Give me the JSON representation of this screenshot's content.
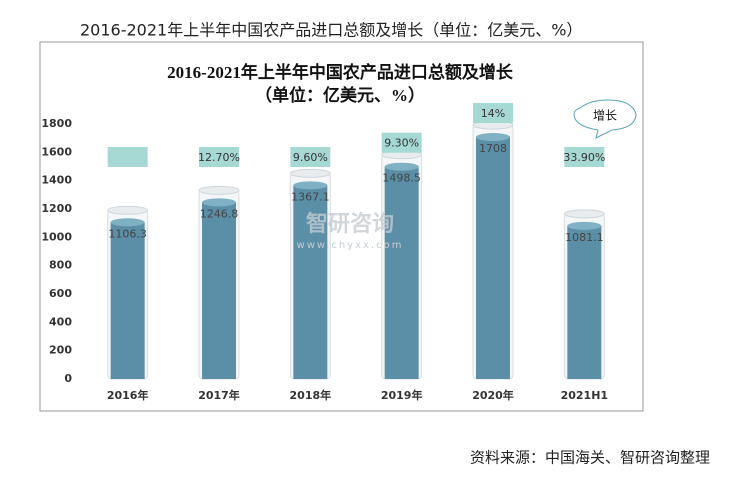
{
  "caption": "2016-2021年上半年中国农产品进口总额及增长（单位：亿美元、%）",
  "source": "资料来源：中国海关、智研咨询整理",
  "chart_data": {
    "type": "bar",
    "title": "2016-2021年上半年中国农产品进口总额及增长",
    "subtitle": "（单位：亿美元、%）",
    "categories": [
      "2016年",
      "2017年",
      "2018年",
      "2019年",
      "2020年",
      "2021H1"
    ],
    "values": [
      1106.3,
      1246.8,
      1367.1,
      1498.5,
      1708,
      1081.1
    ],
    "color": "#5b8fa7",
    "growth": {
      "values": [
        null,
        12.7,
        9.6,
        9.3,
        14,
        33.9
      ],
      "value_labels": [
        null,
        "12.70%",
        "9.60%",
        "9.30%",
        "14%",
        "33.90%"
      ],
      "color": "#a6d9d4"
    },
    "annotation": "增长",
    "watermark": [
      "智研咨询",
      "www.chyxx.com"
    ],
    "ylim": [
      0,
      1800
    ],
    "yticks": [
      0,
      200,
      400,
      600,
      800,
      1000,
      1200,
      1400,
      1600,
      1800
    ]
  }
}
